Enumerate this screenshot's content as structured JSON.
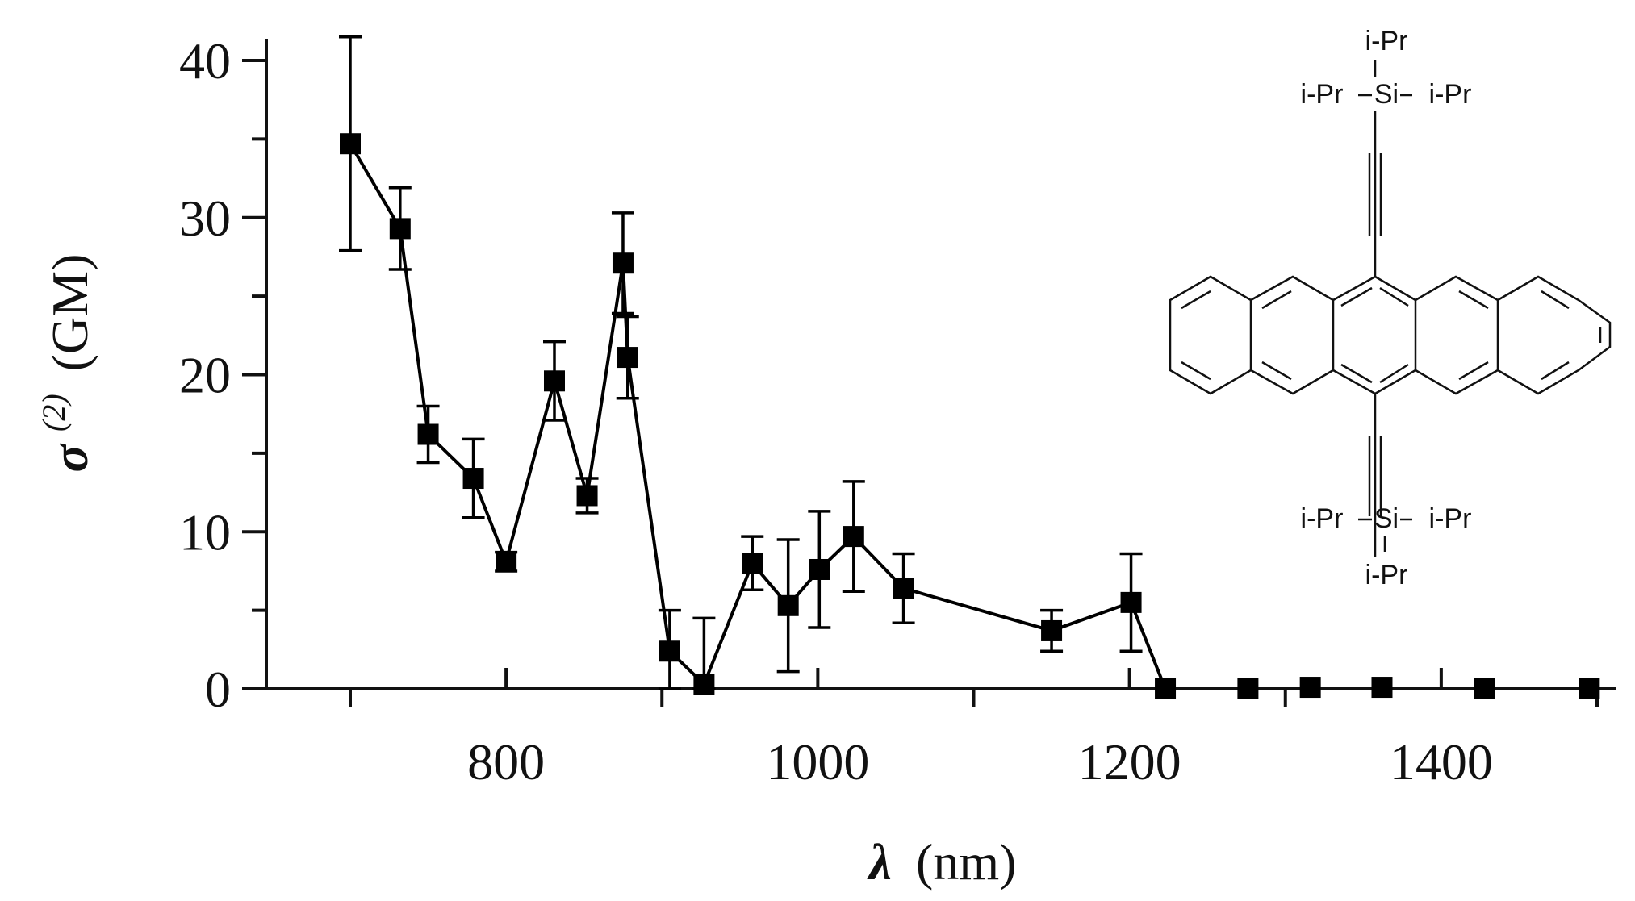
{
  "chart_data": {
    "type": "scatter",
    "xlabel": {
      "symbol": "λ",
      "unit": "(nm)"
    },
    "ylabel": {
      "symbol": "σ",
      "superscript": "(2)",
      "unit": "(GM)"
    },
    "xlim": [
      650,
      1500
    ],
    "ylim": [
      0,
      42
    ],
    "xticks": [
      800,
      1000,
      1200,
      1400
    ],
    "xticks_minor": [
      700,
      900,
      1100,
      1300,
      1500
    ],
    "yticks": [
      0,
      10,
      20,
      30,
      40
    ],
    "grid": false,
    "series": [
      {
        "marker": "square",
        "color": "#000000",
        "x": [
          700,
          732,
          750,
          779,
          800,
          831,
          852,
          875,
          878,
          905,
          927,
          958,
          981,
          1001,
          1023,
          1055,
          1150,
          1201,
          1223
        ],
        "y": [
          34.7,
          29.3,
          16.2,
          13.4,
          8.1,
          19.6,
          12.3,
          27.1,
          21.1,
          2.4,
          0.3,
          8.0,
          5.3,
          7.6,
          9.7,
          6.4,
          3.7,
          5.5,
          0
        ],
        "err": [
          6.8,
          2.6,
          1.8,
          2.5,
          0.6,
          2.5,
          1.1,
          3.2,
          2.6,
          2.6,
          4.2,
          1.7,
          4.2,
          3.7,
          3.5,
          2.2,
          1.3,
          3.1,
          0
        ],
        "connected": true
      },
      {
        "marker": "square",
        "color": "#000000",
        "x": [
          1276,
          1316,
          1362,
          1428,
          1495
        ],
        "y": [
          0,
          0.1,
          0.1,
          0,
          0
        ],
        "connected": false
      }
    ]
  },
  "molecule": {
    "top_substituent": "i-Pr",
    "left_substituent": "i-Pr",
    "right_substituent": "i-Pr",
    "silicon": "Si",
    "bottom_substituent": "i-Pr"
  }
}
